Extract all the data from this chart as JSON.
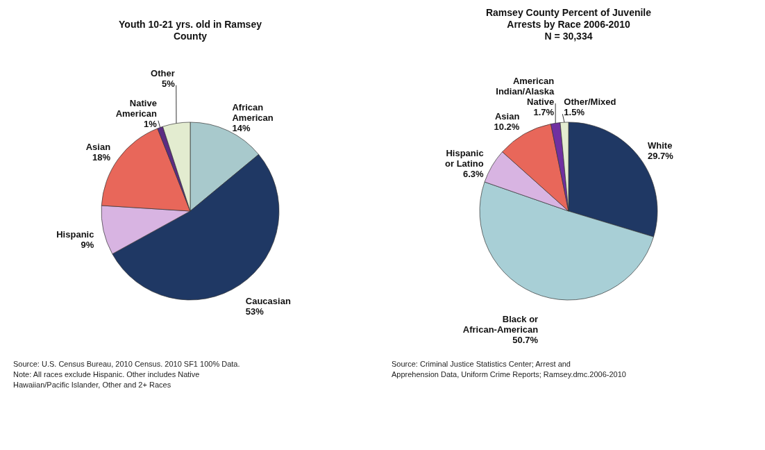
{
  "chart_data": [
    {
      "type": "pie",
      "title": "Youth 10-21 yrs. old in Ramsey County",
      "categories": [
        "African American",
        "Caucasian",
        "Hispanic",
        "Asian",
        "Native American",
        "Other"
      ],
      "values": [
        14,
        53,
        9,
        18,
        1,
        5
      ],
      "value_labels": [
        "14%",
        "53%",
        "9%",
        "18%",
        "1%",
        "5%"
      ],
      "colors": [
        "#a8c9cc",
        "#1f3864",
        "#d8b4e2",
        "#e8675a",
        "#5b2c83",
        "#e3ecd0"
      ],
      "annotations": [
        "Source:  U.S. Census Bureau, 2010 Census.  2010 SF1 100% Data.",
        "Note:  All races exclude Hispanic.  Other includes Native Hawaiian/Pacific Islander, Other and 2+ Races"
      ]
    },
    {
      "type": "pie",
      "title": "Ramsey County Percent of Juvenile Arrests by Race 2006-2010",
      "subtitle": "N = 30,334",
      "categories": [
        "White",
        "Black or African-American",
        "Hispanic or Latino",
        "Asian",
        "American Indian/Alaska Native",
        "Other/Mixed"
      ],
      "values": [
        29.7,
        50.7,
        6.3,
        10.2,
        1.7,
        1.5
      ],
      "value_labels": [
        "29.7%",
        "50.7%",
        "6.3%",
        "10.2%",
        "1.7%",
        "1.5%"
      ],
      "colors": [
        "#1f3864",
        "#a8cfd6",
        "#d8b4e2",
        "#e8675a",
        "#7030a0",
        "#e3ecd0"
      ],
      "annotations": [
        "Source: Criminal Justice Statistics Center; Arrest and Apprehension Data, Uniform Crime Reports; Ramsey.dmc.2006-2010"
      ]
    }
  ]
}
